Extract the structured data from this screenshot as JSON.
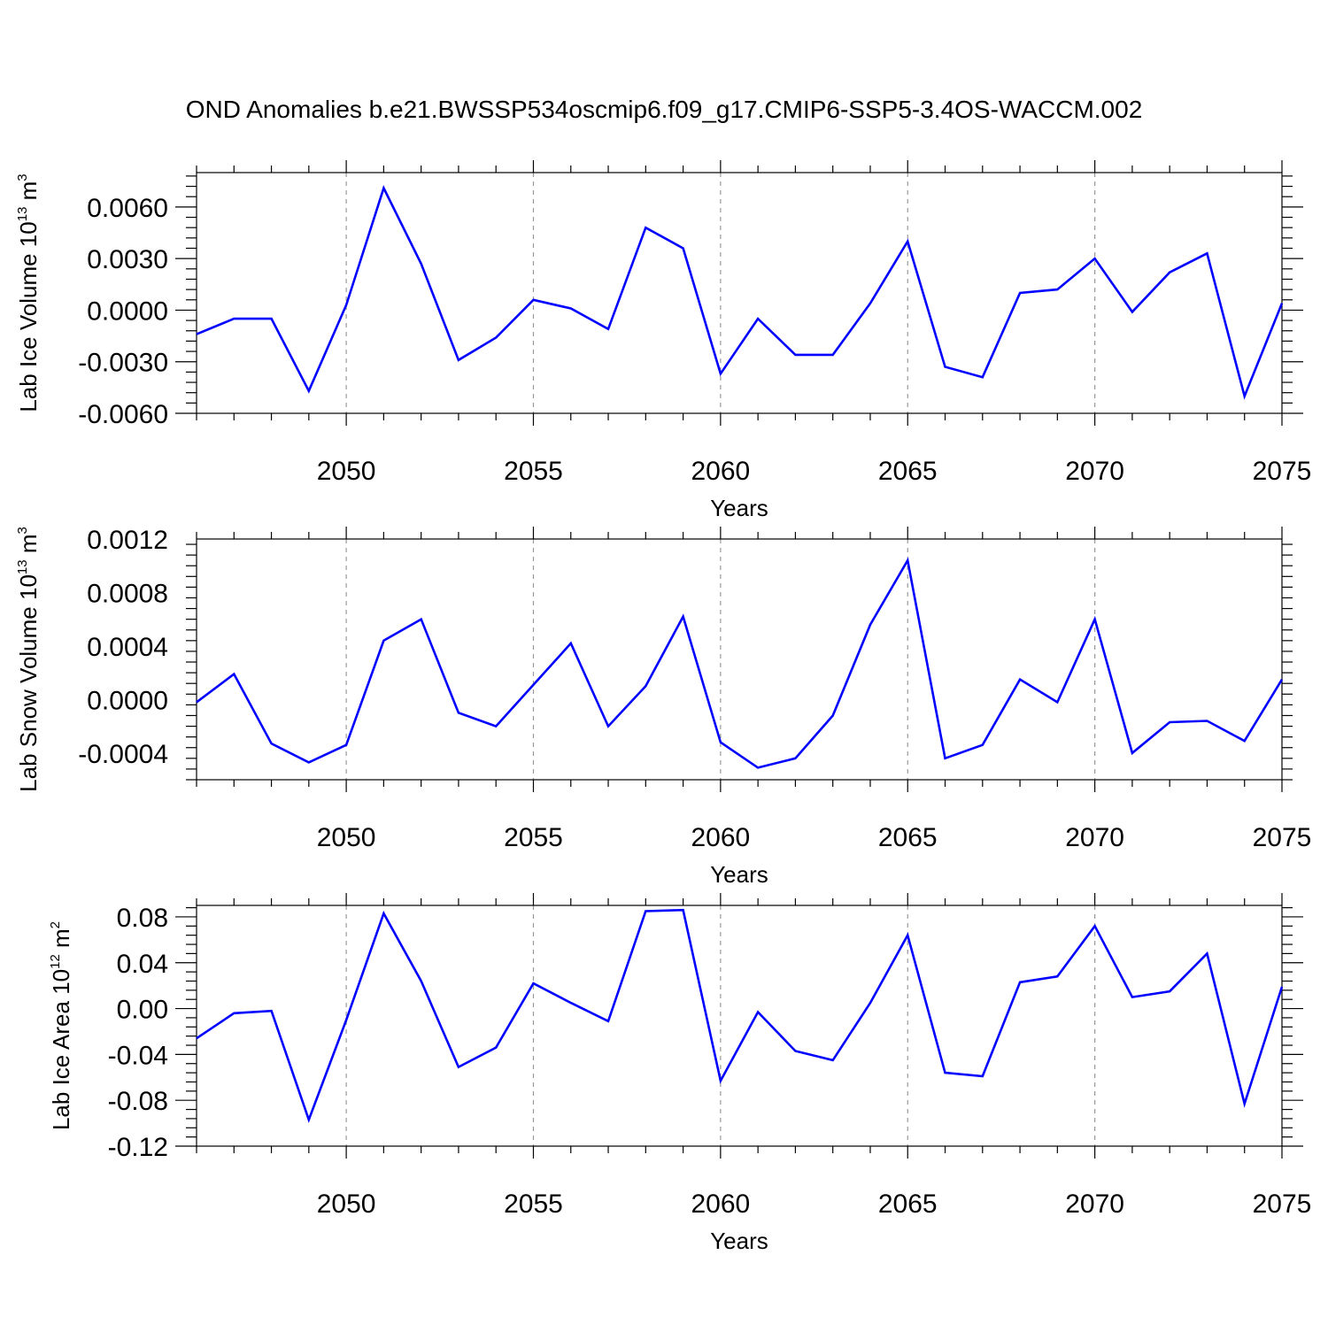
{
  "title": "OND Anomalies b.e21.BWSSP534oscmip6.f09_g17.CMIP6-SSP5-3.4OS-WACCM.002",
  "colors": {
    "line": "#0000ff",
    "axis": "#000000",
    "grid": "#999999"
  },
  "chart_data": [
    {
      "type": "line",
      "ylabel": {
        "text": "Lab Ice Volume 10",
        "exponent": "13",
        "unit": " m",
        "unit_exponent": "3"
      },
      "xlabel": "Years",
      "xlim": [
        2046,
        2075
      ],
      "ylim": [
        -0.006,
        0.008
      ],
      "x_ticks": [
        2050,
        2055,
        2060,
        2065,
        2070,
        2075
      ],
      "x_tick_labels": [
        "2050",
        "2055",
        "2060",
        "2065",
        "2070",
        "2075"
      ],
      "y_ticks": [
        -0.006,
        -0.003,
        0.0,
        0.003,
        0.006
      ],
      "y_tick_labels": [
        "-0.0060",
        "-0.0030",
        "0.0000",
        "0.0030",
        "0.0060"
      ],
      "grid": "vertical-dashed-at-major-x",
      "x": [
        2046,
        2047,
        2048,
        2049,
        2050,
        2051,
        2052,
        2053,
        2054,
        2055,
        2056,
        2057,
        2058,
        2059,
        2060,
        2061,
        2062,
        2063,
        2064,
        2065,
        2066,
        2067,
        2068,
        2069,
        2070,
        2071,
        2072,
        2073,
        2074,
        2075
      ],
      "series": [
        {
          "values": [
            -0.0014,
            -0.0005,
            -0.0005,
            -0.0047,
            0.0003,
            0.0071,
            0.0027,
            -0.0029,
            -0.0016,
            0.0006,
            0.0001,
            -0.0011,
            0.0048,
            0.0036,
            -0.0037,
            -0.0005,
            -0.0026,
            -0.0026,
            0.0004,
            0.004,
            -0.0033,
            -0.0039,
            0.001,
            0.0012,
            0.003,
            -0.0001,
            0.0022,
            0.0033,
            -0.005,
            0.0004
          ]
        }
      ]
    },
    {
      "type": "line",
      "ylabel": {
        "text": "Lab Snow Volume 10",
        "exponent": "13",
        "unit": " m",
        "unit_exponent": "3"
      },
      "xlabel": "Years",
      "xlim": [
        2046,
        2075
      ],
      "ylim": [
        -0.0006,
        0.0012
      ],
      "x_ticks": [
        2050,
        2055,
        2060,
        2065,
        2070,
        2075
      ],
      "x_tick_labels": [
        "2050",
        "2055",
        "2060",
        "2065",
        "2070",
        "2075"
      ],
      "y_ticks": [
        -0.0004,
        0.0,
        0.0004,
        0.0008,
        0.0012
      ],
      "y_tick_labels": [
        "-0.0004",
        "0.0000",
        "0.0004",
        "0.0008",
        "0.0012"
      ],
      "grid": "vertical-dashed-at-major-x",
      "x": [
        2046,
        2047,
        2048,
        2049,
        2050,
        2051,
        2052,
        2053,
        2054,
        2055,
        2056,
        2057,
        2058,
        2059,
        2060,
        2061,
        2062,
        2063,
        2064,
        2065,
        2066,
        2067,
        2068,
        2069,
        2070,
        2071,
        2072,
        2073,
        2074,
        2075
      ],
      "series": [
        {
          "values": [
            -2e-05,
            0.00019,
            -0.00033,
            -0.00047,
            -0.00034,
            0.00044,
            0.0006,
            -0.0001,
            -0.0002,
            0.00011,
            0.00042,
            -0.0002,
            0.0001,
            0.00062,
            -0.00032,
            -0.00051,
            -0.00044,
            -0.00012,
            0.00056,
            0.00104,
            -0.00044,
            -0.00034,
            0.00015,
            -2e-05,
            0.0006,
            -0.0004,
            -0.00017,
            -0.00016,
            -0.00031,
            0.00015
          ]
        }
      ]
    },
    {
      "type": "line",
      "ylabel": {
        "text": "Lab Ice Area 10",
        "exponent": "12",
        "unit": " m",
        "unit_exponent": "2"
      },
      "xlabel": "Years",
      "xlim": [
        2046,
        2075
      ],
      "ylim": [
        -0.12,
        0.09
      ],
      "x_ticks": [
        2050,
        2055,
        2060,
        2065,
        2070,
        2075
      ],
      "x_tick_labels": [
        "2050",
        "2055",
        "2060",
        "2065",
        "2070",
        "2075"
      ],
      "y_ticks": [
        -0.12,
        -0.08,
        -0.04,
        0.0,
        0.04,
        0.08
      ],
      "y_tick_labels": [
        "-0.12",
        "-0.08",
        "-0.04",
        "0.00",
        "0.04",
        "0.08"
      ],
      "grid": "vertical-dashed-at-major-x",
      "x": [
        2046,
        2047,
        2048,
        2049,
        2050,
        2051,
        2052,
        2053,
        2054,
        2055,
        2056,
        2057,
        2058,
        2059,
        2060,
        2061,
        2062,
        2063,
        2064,
        2065,
        2066,
        2067,
        2068,
        2069,
        2070,
        2071,
        2072,
        2073,
        2074,
        2075
      ],
      "series": [
        {
          "values": [
            -0.026,
            -0.004,
            -0.002,
            -0.097,
            -0.01,
            0.083,
            0.024,
            -0.051,
            -0.034,
            0.022,
            0.005,
            -0.011,
            0.085,
            0.086,
            -0.063,
            -0.003,
            -0.037,
            -0.045,
            0.005,
            0.064,
            -0.056,
            -0.059,
            0.023,
            0.028,
            0.072,
            0.01,
            0.015,
            0.048,
            -0.083,
            0.019
          ]
        }
      ]
    }
  ]
}
